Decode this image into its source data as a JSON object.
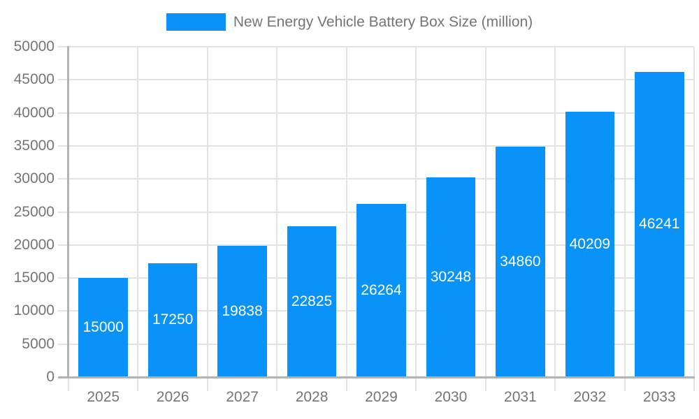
{
  "legend": {
    "label": "New Energy Vehicle Battery Box Size (million)"
  },
  "chart_data": {
    "type": "bar",
    "title": "New Energy Vehicle Battery Box Size (million)",
    "legend_entries": [
      "New Energy Vehicle Battery Box Size (million)"
    ],
    "legend_position": "top-center",
    "categories": [
      "2025",
      "2026",
      "2027",
      "2028",
      "2029",
      "2030",
      "2031",
      "2032",
      "2033"
    ],
    "series": [
      {
        "name": "New Energy Vehicle Battery Box Size (million)",
        "values": [
          15000,
          17250,
          19838,
          22825,
          26264,
          30248,
          34860,
          40209,
          46241
        ]
      }
    ],
    "value_labels": [
      "15000",
      "17250",
      "19838",
      "22825",
      "26264",
      "30248",
      "34860",
      "40209",
      "46241"
    ],
    "value_label_position": "inside-center",
    "xlabel": "",
    "ylabel": "",
    "ylim": [
      0,
      50000
    ],
    "ytick_step": 5000,
    "ytick_labels": [
      "0",
      "5000",
      "10000",
      "15000",
      "20000",
      "25000",
      "30000",
      "35000",
      "40000",
      "45000",
      "50000"
    ],
    "grid": true,
    "colors": {
      "bar": "#0992f8",
      "grid": "#e3e3e3",
      "axis": "#b3b3b3",
      "tick_text": "#757575",
      "value_label_text": "#ffffff",
      "background": "#ffffff"
    }
  }
}
